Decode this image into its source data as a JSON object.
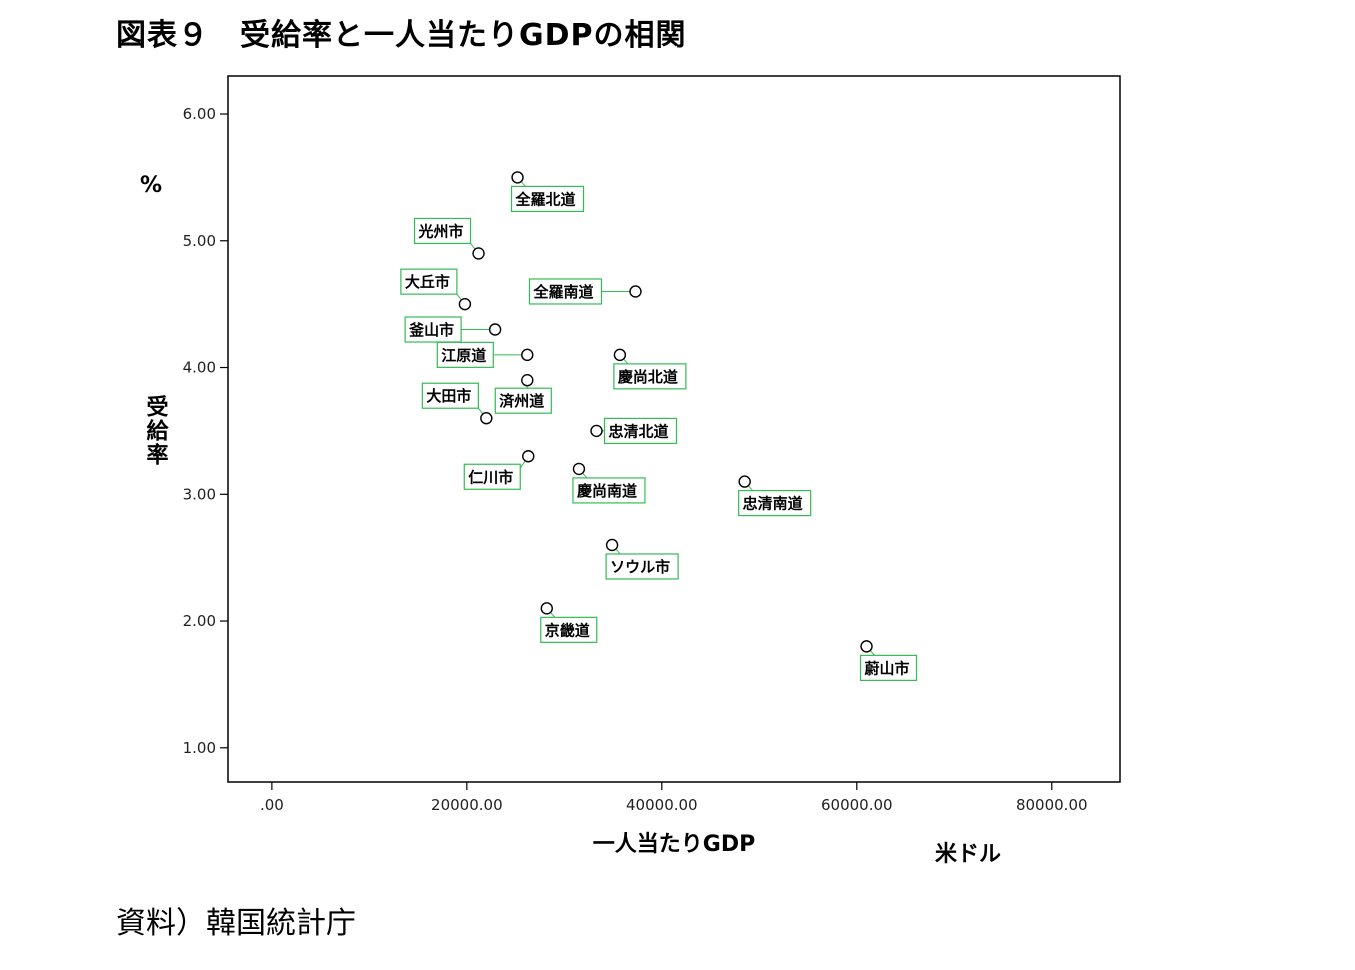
{
  "title": "図表９　受給率と一人当たりGDPの相関",
  "source": "資料）韓国統計庁",
  "colors": {
    "label_border": "#33bb55",
    "point_stroke": "#000000",
    "frame": "#000000"
  },
  "chart_data": {
    "type": "scatter",
    "title": "図表９　受給率と一人当たりGDPの相関",
    "xlabel": "一人当たりGDP",
    "xunit": "米ドル",
    "ylabel": "受給率",
    "yunit": "%",
    "xlim": [
      -4500,
      87000
    ],
    "ylim": [
      0.73,
      6.3
    ],
    "xticks": [
      0,
      20000,
      40000,
      60000,
      80000
    ],
    "xtick_labels": [
      ".00",
      "20000.00",
      "40000.00",
      "60000.00",
      "80000.00"
    ],
    "yticks": [
      1,
      2,
      3,
      4,
      5,
      6
    ],
    "ytick_labels": [
      "1.00",
      "2.00",
      "3.00",
      "4.00",
      "5.00",
      "6.00"
    ],
    "grid": false,
    "legend": "none",
    "points": [
      {
        "label": "全羅北道",
        "x": 25200,
        "y": 5.5,
        "dir": "br"
      },
      {
        "label": "光州市",
        "x": 21200,
        "y": 4.9,
        "dir": "tl"
      },
      {
        "label": "大丘市",
        "x": 19800,
        "y": 4.5,
        "dir": "tl"
      },
      {
        "label": "全羅南道",
        "x": 37300,
        "y": 4.6,
        "dir": "l"
      },
      {
        "label": "釜山市",
        "x": 22900,
        "y": 4.3,
        "dir": "l"
      },
      {
        "label": "江原道",
        "x": 26200,
        "y": 4.1,
        "dir": "l"
      },
      {
        "label": "慶尚北道",
        "x": 35700,
        "y": 4.1,
        "dir": "br"
      },
      {
        "label": "済州道",
        "x": 26200,
        "y": 3.9,
        "dir": "b"
      },
      {
        "label": "大田市",
        "x": 22000,
        "y": 3.6,
        "dir": "tl"
      },
      {
        "label": "忠清北道",
        "x": 33300,
        "y": 3.5,
        "dir": "r"
      },
      {
        "label": "仁川市",
        "x": 26300,
        "y": 3.3,
        "dir": "bl"
      },
      {
        "label": "慶尚南道",
        "x": 31500,
        "y": 3.2,
        "dir": "br"
      },
      {
        "label": "忠清南道",
        "x": 48500,
        "y": 3.1,
        "dir": "br"
      },
      {
        "label": "ソウル市",
        "x": 34900,
        "y": 2.6,
        "dir": "br"
      },
      {
        "label": "京畿道",
        "x": 28200,
        "y": 2.1,
        "dir": "br"
      },
      {
        "label": "蔚山市",
        "x": 61000,
        "y": 1.8,
        "dir": "br"
      }
    ]
  }
}
